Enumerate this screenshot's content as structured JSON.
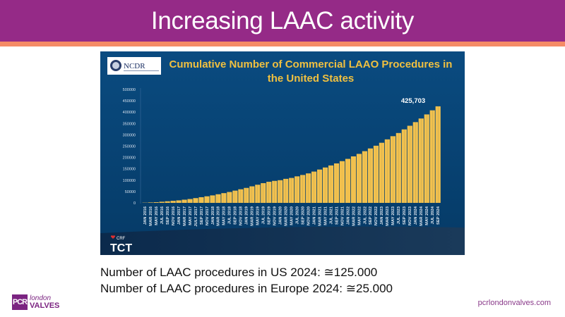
{
  "slide": {
    "title": "Increasing LAAC activity",
    "lines": [
      "Number of LAAC procedures in US 2024: ≅125.000",
      "Number of LAAC procedures in Europe 2024: ≅25.000"
    ],
    "logo": {
      "badge": "PCR",
      "line1": "london",
      "line2": "VALVES"
    },
    "url": "pcrlondonvalves.com",
    "colors": {
      "header": "#952a87",
      "stripe": "#f58b66",
      "chart_bg": "#074a80",
      "bars": "#f2c14e",
      "chart_title": "#f0c040"
    }
  },
  "chart_data": {
    "type": "bar",
    "title": "Cumulative Number of Commercial LAAO Procedures in the United States",
    "title_lines": [
      "Cumulative Number of Commercial LAAO Procedures in",
      "the United States"
    ],
    "source_logo": "NCDR",
    "footer_logo": {
      "small": "CRF",
      "large": "TCT"
    },
    "ylim": [
      0,
      500000
    ],
    "yticks": [
      "0",
      "50000",
      "100000",
      "150000",
      "200000",
      "250000",
      "300000",
      "350000",
      "400000",
      "450000",
      "500000"
    ],
    "annotation": "425,703",
    "grid": false,
    "categories": [
      "JAN 2016",
      "MAR 2016",
      "MAY 2016",
      "JUL 2016",
      "SEP 2016",
      "NOV 2016",
      "JAN 2017",
      "MAR 2017",
      "MAY 2017",
      "JULY 2017",
      "SEP 2017",
      "NOV 2017",
      "JAN 2018",
      "MAR 2018",
      "MAY 2018",
      "JUL 2018",
      "SEP 2018",
      "NOV 2018",
      "JAN 2019",
      "MAR 2019",
      "MAY 2019",
      "JUL 2019",
      "SEP 2019",
      "NOV 2019",
      "JAN 2020",
      "MAR 2020",
      "MAY 2020",
      "JUL 2020",
      "SEP 2020",
      "NOV 2020",
      "JAN 2021",
      "MAR 2021",
      "MAY 2021",
      "JUL 2021",
      "SEP 2021",
      "NOV 2021",
      "JAN 2022",
      "MAR 2022",
      "MAY 2022",
      "JUL 2022",
      "SEP 2022",
      "NOV 2022",
      "JAN 2023",
      "MAR 2023",
      "MAY 2023",
      "JUL 2023",
      "SEP 2023",
      "NOV 2023",
      "JAN 2024",
      "MAR 2024",
      "MAY 2024",
      "JUL 2024",
      "SEP 2024"
    ],
    "values": [
      1000,
      2000,
      3000,
      5000,
      7000,
      9000,
      11000,
      14000,
      17000,
      21000,
      25000,
      29000,
      33000,
      38000,
      43000,
      48000,
      54000,
      60000,
      66000,
      73000,
      80000,
      87000,
      93000,
      97000,
      100000,
      106000,
      110000,
      117000,
      123000,
      130000,
      138000,
      147000,
      156000,
      165000,
      174000,
      184000,
      194000,
      205000,
      216000,
      228000,
      240000,
      252000,
      265000,
      280000,
      294000,
      308000,
      324000,
      340000,
      356000,
      372000,
      390000,
      408000,
      425703
    ]
  }
}
